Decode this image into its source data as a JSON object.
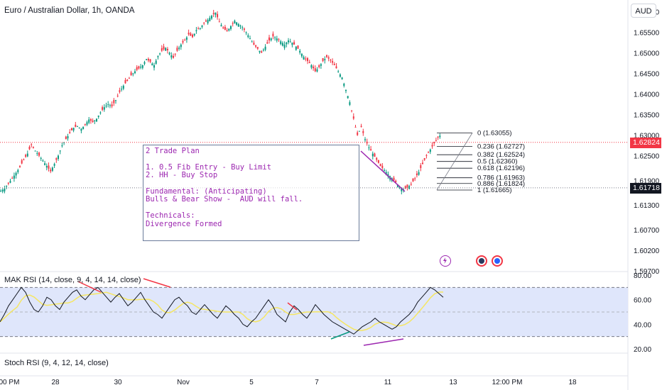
{
  "header": {
    "title": "Euro / Australian Dollar, 1h, OANDA",
    "currency": "AUD"
  },
  "price_tags": {
    "current": "1.62824",
    "level": "1.61718",
    "current_color": "#f23645",
    "level_color": "#131722"
  },
  "note": {
    "text": "2 Trade Plan\n\n1. 0.5 Fib Entry - Buy Limit\n2. HH - Buy Stop\n\nFundamental: (Anticipating)\nBulls & Bear Show -  AUD will fall.\n\nTechnicals:\nDivergence Formed"
  },
  "fib_labels": [
    "0 (1.63055)",
    "0.236 (1.62727)",
    "0.382 (1.62524)",
    "0.5 (1.62360)",
    "0.618 (1.62196)",
    "0.786 (1.61963)",
    "0.886 (1.61824)",
    "1 (1.61665)"
  ],
  "indicators": {
    "rsi_title": "MAK RSI (14, close, 9, 4, 14, 14, close)",
    "stoch_title": "Stoch RSI (9, 4, 12, 14, close)"
  },
  "icons": [
    "lightning-icon",
    "flag-icon",
    "target-icon"
  ],
  "chart_data": {
    "type": "candlestick",
    "symbol": "EURAUD",
    "ylim": [
      1.597,
      1.6625
    ],
    "y_ticks": [
      "1.66000",
      "1.65500",
      "1.65000",
      "1.64500",
      "1.64000",
      "1.63500",
      "1.63000",
      "1.62500",
      "1.61900",
      "1.61300",
      "1.60700",
      "1.60200",
      "1.59700"
    ],
    "y_tick_values": [
      1.66,
      1.655,
      1.65,
      1.645,
      1.64,
      1.635,
      1.63,
      1.625,
      1.619,
      1.613,
      1.607,
      1.602,
      1.597
    ],
    "x_ticks": [
      "12:00 PM",
      "28",
      "30",
      "Nov",
      "5",
      "7",
      "11",
      "13",
      "12:00 PM",
      "18"
    ],
    "x_tick_index": [
      18,
      36,
      58,
      81,
      105,
      128,
      153,
      176,
      195,
      218
    ],
    "closes": [
      1.6164,
      1.617,
      1.6182,
      1.6195,
      1.6208,
      1.6222,
      1.624,
      1.6255,
      1.6276,
      1.6262,
      1.625,
      1.6238,
      1.6225,
      1.6212,
      1.623,
      1.625,
      1.6275,
      1.629,
      1.6305,
      1.6318,
      1.6322,
      1.6315,
      1.6325,
      1.6338,
      1.6332,
      1.634,
      1.6355,
      1.6368,
      1.6375,
      1.637,
      1.6385,
      1.6405,
      1.642,
      1.6432,
      1.6445,
      1.6455,
      1.6462,
      1.647,
      1.6485,
      1.6478,
      1.647,
      1.6492,
      1.6505,
      1.6512,
      1.65,
      1.6488,
      1.6505,
      1.652,
      1.653,
      1.6545,
      1.6538,
      1.6555,
      1.656,
      1.6572,
      1.658,
      1.659,
      1.6598,
      1.6575,
      1.656,
      1.6552,
      1.6565,
      1.6578,
      1.657,
      1.6562,
      1.655,
      1.6535,
      1.652,
      1.651,
      1.65,
      1.6515,
      1.653,
      1.654,
      1.6535,
      1.6528,
      1.652,
      1.653,
      1.6525,
      1.6515,
      1.6505,
      1.649,
      1.648,
      1.647,
      1.6455,
      1.6465,
      1.648,
      1.649,
      1.6482,
      1.647,
      1.6455,
      1.644,
      1.641,
      1.638,
      1.634,
      1.63,
      1.632,
      1.629,
      1.627,
      1.6255,
      1.624,
      1.6225,
      1.6215,
      1.6205,
      1.6195,
      1.6185,
      1.6175,
      1.6168,
      1.6172,
      1.618,
      1.6195,
      1.621,
      1.623,
      1.625,
      1.6265,
      1.628,
      1.6295,
      1.6302,
      1.6282
    ],
    "rsi": {
      "ylim": [
        20,
        80
      ],
      "y_ticks": [
        "80.00",
        "60.00",
        "40.00",
        "20.00"
      ],
      "y_tick_values": [
        80,
        60,
        40,
        20
      ],
      "band": [
        30,
        70
      ],
      "midline": 50,
      "values": [
        42,
        48,
        55,
        60,
        65,
        70,
        66,
        58,
        52,
        50,
        55,
        62,
        60,
        55,
        52,
        58,
        62,
        66,
        68,
        63,
        60,
        64,
        68,
        70,
        66,
        62,
        58,
        62,
        65,
        60,
        55,
        58,
        62,
        66,
        60,
        55,
        50,
        48,
        45,
        50,
        55,
        60,
        62,
        58,
        55,
        50,
        48,
        52,
        56,
        52,
        48,
        45,
        50,
        55,
        52,
        48,
        45,
        40,
        38,
        42,
        45,
        50,
        55,
        60,
        55,
        48,
        45,
        42,
        50,
        55,
        52,
        48,
        45,
        50,
        56,
        52,
        48,
        45,
        42,
        40,
        38,
        36,
        34,
        32,
        35,
        38,
        40,
        42,
        45,
        42,
        40,
        38,
        36,
        38,
        42,
        45,
        48,
        52,
        58,
        62,
        66,
        70,
        68,
        65,
        62
      ]
    }
  }
}
